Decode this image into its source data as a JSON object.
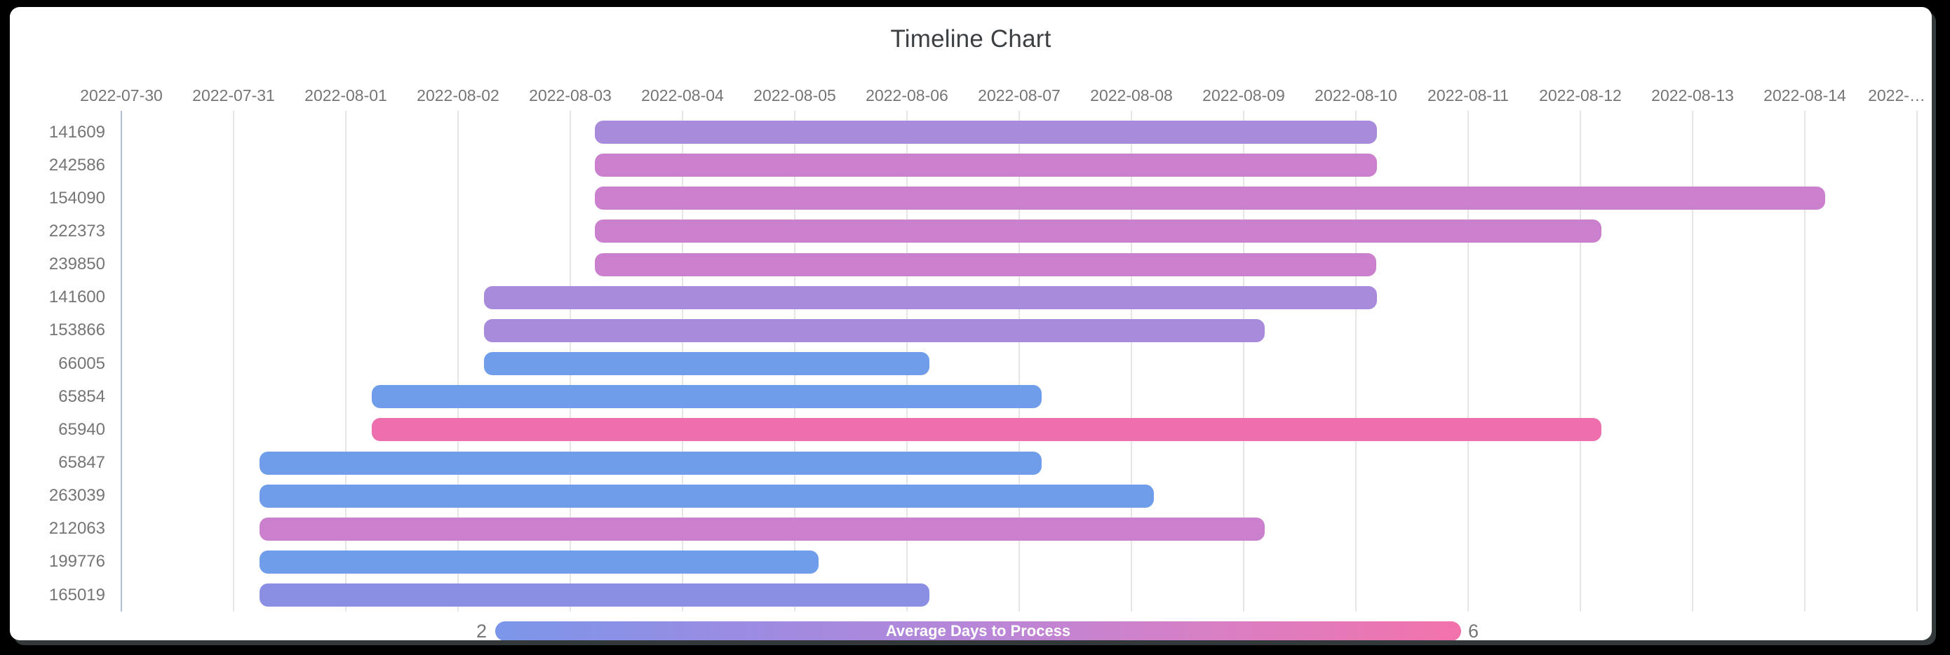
{
  "chart_data": {
    "type": "timeline",
    "title": "Timeline Chart",
    "x_axis": {
      "start_date": "2022-07-30",
      "interval_days": 1,
      "tick_labels": [
        "2022-07-30",
        "2022-07-31",
        "2022-08-01",
        "2022-08-02",
        "2022-08-03",
        "2022-08-04",
        "2022-08-05",
        "2022-08-06",
        "2022-08-07",
        "2022-08-08",
        "2022-08-09",
        "2022-08-10",
        "2022-08-11",
        "2022-08-12",
        "2022-08-13",
        "2022-08-14",
        "2022-…"
      ]
    },
    "rows": [
      {
        "label": "141609",
        "start_day": 4.22,
        "end_day": 11.19,
        "color": "#A88BDB"
      },
      {
        "label": "242586",
        "start_day": 4.22,
        "end_day": 11.19,
        "color": "#CB80CE"
      },
      {
        "label": "154090",
        "start_day": 4.22,
        "end_day": 15.18,
        "color": "#CB80CE"
      },
      {
        "label": "222373",
        "start_day": 4.22,
        "end_day": 13.19,
        "color": "#CB80CE"
      },
      {
        "label": "239850",
        "start_day": 4.22,
        "end_day": 11.18,
        "color": "#CB80CE"
      },
      {
        "label": "141600",
        "start_day": 3.23,
        "end_day": 11.19,
        "color": "#A88BDB"
      },
      {
        "label": "153866",
        "start_day": 3.23,
        "end_day": 10.19,
        "color": "#A88BDB"
      },
      {
        "label": "66005",
        "start_day": 3.23,
        "end_day": 7.2,
        "color": "#6F9DEA"
      },
      {
        "label": "65854",
        "start_day": 2.23,
        "end_day": 8.2,
        "color": "#6F9DEA"
      },
      {
        "label": "65940",
        "start_day": 2.23,
        "end_day": 13.19,
        "color": "#EE6FAE"
      },
      {
        "label": "65847",
        "start_day": 1.23,
        "end_day": 8.2,
        "color": "#6F9DEA"
      },
      {
        "label": "263039",
        "start_day": 1.23,
        "end_day": 9.2,
        "color": "#6F9DEA"
      },
      {
        "label": "212063",
        "start_day": 1.23,
        "end_day": 10.19,
        "color": "#CB80CE"
      },
      {
        "label": "199776",
        "start_day": 1.23,
        "end_day": 6.21,
        "color": "#6F9DEA"
      },
      {
        "label": "165019",
        "start_day": 1.23,
        "end_day": 7.2,
        "color": "#8A8FE3"
      }
    ],
    "legend": {
      "label": "Average Days to Process",
      "min_label": "2",
      "max_label": "6",
      "gradient": [
        "#7B96E9",
        "#9A8CE2",
        "#B886D8",
        "#D97FC4",
        "#F272AB"
      ]
    },
    "style_colors": {
      "axis_line": "#b3bfd9",
      "gridline": "#e6e6e6",
      "tick_text": "#757575",
      "title_text": "#3c4043",
      "panel_bg": "#ffffff",
      "frame_bg": "#000000"
    }
  }
}
